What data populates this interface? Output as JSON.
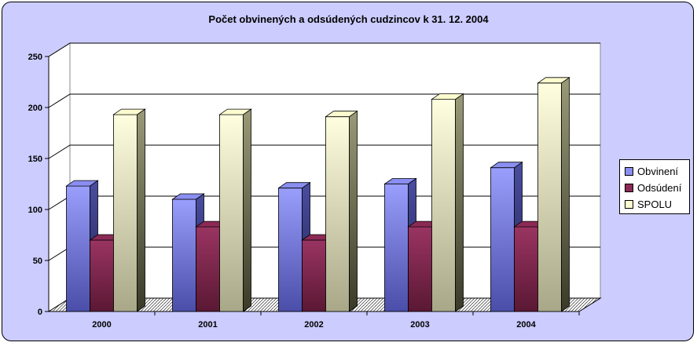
{
  "chart_data": {
    "type": "bar",
    "title": "Počet obvinených a odsúdených cudzincov k 31. 12. 2004",
    "categories": [
      "2000",
      "2001",
      "2002",
      "2003",
      "2004"
    ],
    "series": [
      {
        "name": "Obvinení",
        "values": [
          123,
          110,
          121,
          125,
          141
        ],
        "color": "#8a8ef0"
      },
      {
        "name": "Odsúdení",
        "values": [
          70,
          83,
          70,
          83,
          83
        ],
        "color": "#8b2a55"
      },
      {
        "name": "SPOLU",
        "values": [
          193,
          193,
          191,
          208,
          224
        ],
        "color": "#fbfbcf"
      }
    ],
    "ylim": [
      0,
      250
    ],
    "yticks": [
      0,
      50,
      100,
      150,
      200,
      250
    ],
    "grid": true,
    "legend_position": "right"
  }
}
